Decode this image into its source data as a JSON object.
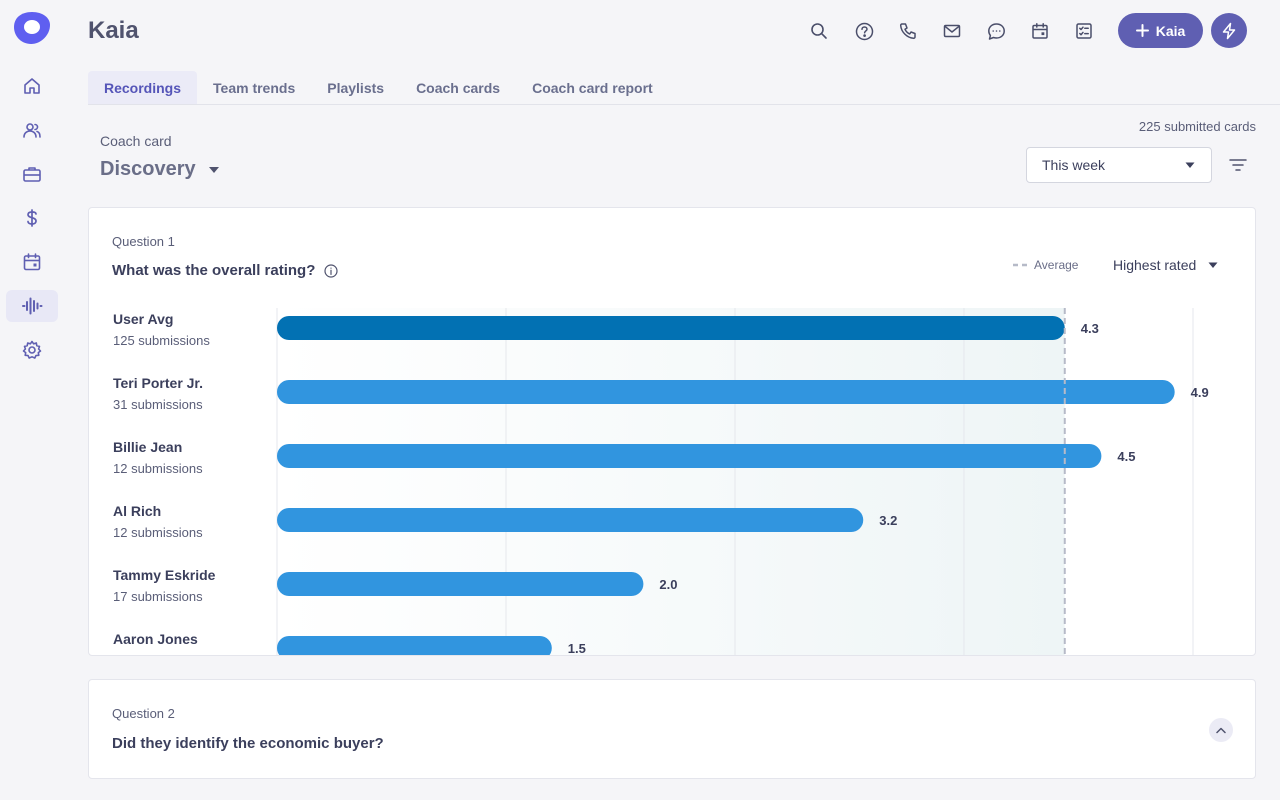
{
  "app": {
    "title": "Kaia"
  },
  "sidebar": {
    "items": [
      {
        "icon": "home-icon"
      },
      {
        "icon": "people-icon"
      },
      {
        "icon": "briefcase-icon"
      },
      {
        "icon": "dollar-icon"
      },
      {
        "icon": "calendar-icon"
      },
      {
        "icon": "waveform-icon",
        "active": true
      },
      {
        "icon": "gear-icon"
      }
    ]
  },
  "header": {
    "icons": [
      "search-icon",
      "help-icon",
      "phone-icon",
      "mail-icon",
      "chat-icon",
      "calendar-icon",
      "tasks-icon"
    ],
    "kaia_button": "Kaia"
  },
  "tabs": [
    {
      "label": "Recordings",
      "active": true
    },
    {
      "label": "Team trends"
    },
    {
      "label": "Playlists"
    },
    {
      "label": "Coach cards"
    },
    {
      "label": "Coach card report"
    }
  ],
  "coach_card": {
    "label": "Coach card",
    "selected": "Discovery",
    "submitted_text": "225 submitted cards",
    "range": "This week"
  },
  "question1": {
    "label": "Question 1",
    "title": "What was the overall rating?",
    "legend_average": "Average",
    "sort": "Highest rated"
  },
  "question2": {
    "label": "Question 2",
    "title": "Did they identify the economic buyer?"
  },
  "colors": {
    "accent": "#5f5fb2",
    "bar": "#3195df",
    "bar_avg": "#0271b3"
  },
  "chart_data": {
    "type": "bar",
    "orientation": "horizontal",
    "xlim": [
      0,
      5
    ],
    "average": 4.3,
    "grid": true,
    "categories": [
      "User Avg",
      "Teri Porter Jr.",
      "Billie Jean",
      "Al Rich",
      "Tammy Eskride",
      "Aaron Jones"
    ],
    "subtitles": [
      "125 submissions",
      "31 submissions",
      "12 submissions",
      "12 submissions",
      "17 submissions",
      ""
    ],
    "values": [
      4.3,
      4.9,
      4.5,
      3.2,
      2.0,
      1.5
    ]
  }
}
